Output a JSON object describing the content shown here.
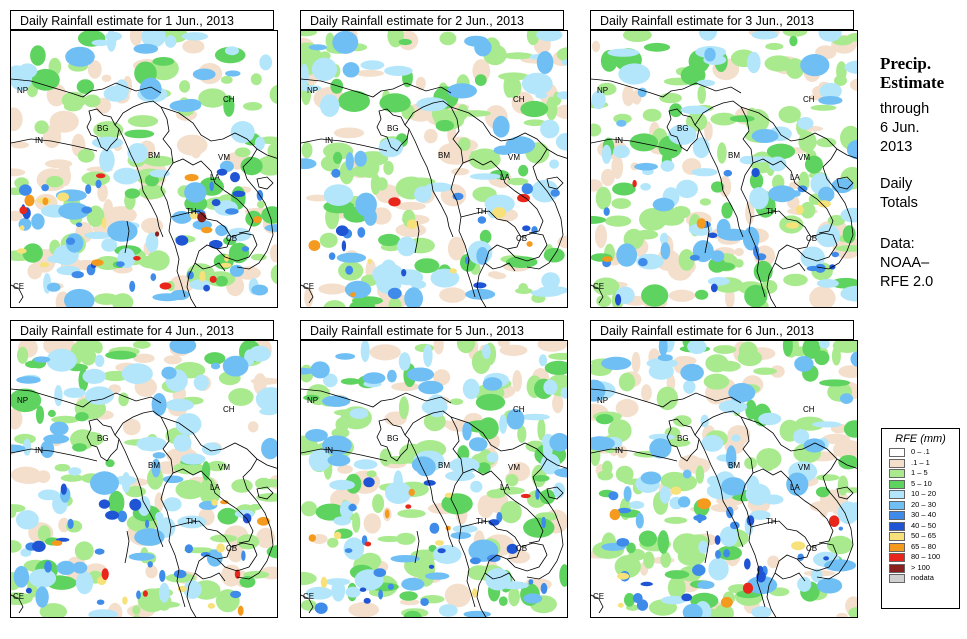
{
  "panels": [
    {
      "title": "Daily Rainfall estimate for  1 Jun., 2013"
    },
    {
      "title": "Daily Rainfall estimate for  2 Jun., 2013"
    },
    {
      "title": "Daily Rainfall estimate for  3 Jun., 2013"
    },
    {
      "title": "Daily Rainfall estimate for  4 Jun., 2013"
    },
    {
      "title": "Daily Rainfall estimate for  5 Jun., 2013"
    },
    {
      "title": "Daily Rainfall estimate for  6 Jun., 2013"
    }
  ],
  "map_labels": {
    "NP": "NP",
    "CH": "CH",
    "IN": "IN",
    "BG": "BG",
    "BM": "BM",
    "VM": "VM",
    "LA": "LA",
    "TH": "TH",
    "CB": "CB",
    "CE": "CE"
  },
  "sidebar": {
    "title_line1": "Precip.",
    "title_line2": "Estimate",
    "through": "through",
    "date_line1": "6 Jun.",
    "date_line2": "2013",
    "daily1": "Daily",
    "daily2": "Totals",
    "data1": "Data:",
    "data2": "NOAA–",
    "data3": "RFE 2.0"
  },
  "legend": {
    "title": "RFE (mm)",
    "items": [
      {
        "label": "0 – .1",
        "color": "#ffffff"
      },
      {
        "label": ".1 – 1",
        "color": "#f3dfcb"
      },
      {
        "label": "1 – 5",
        "color": "#a9ea8e"
      },
      {
        "label": "5 – 10",
        "color": "#5fd35f"
      },
      {
        "label": "10 – 20",
        "color": "#b3e6fb"
      },
      {
        "label": "20 – 30",
        "color": "#6fbff5"
      },
      {
        "label": "30 – 40",
        "color": "#3e8bea"
      },
      {
        "label": "40 – 50",
        "color": "#1f55d4"
      },
      {
        "label": "50 – 65",
        "color": "#f7e17a"
      },
      {
        "label": "65 – 80",
        "color": "#f39a1f"
      },
      {
        "label": "80 – 100",
        "color": "#e8261c"
      },
      {
        "label": "> 100",
        "color": "#8a2020"
      },
      {
        "label": "nodata",
        "color": "#d0d0d0"
      }
    ]
  },
  "rain_patterns": [
    [
      {
        "c": "#f3dfcb",
        "n": 55
      },
      {
        "c": "#a9ea8e",
        "n": 60
      },
      {
        "c": "#5fd35f",
        "n": 25
      },
      {
        "c": "#b3e6fb",
        "n": 35
      },
      {
        "c": "#6fbff5",
        "n": 25
      },
      {
        "c": "#3e8bea",
        "n": 18
      },
      {
        "c": "#1f55d4",
        "n": 10
      },
      {
        "c": "#f7e17a",
        "n": 10
      },
      {
        "c": "#f39a1f",
        "n": 6
      },
      {
        "c": "#e8261c",
        "n": 5
      },
      {
        "c": "#8a2020",
        "n": 2
      }
    ],
    [
      {
        "c": "#f3dfcb",
        "n": 60
      },
      {
        "c": "#a9ea8e",
        "n": 70
      },
      {
        "c": "#5fd35f",
        "n": 25
      },
      {
        "c": "#b3e6fb",
        "n": 35
      },
      {
        "c": "#6fbff5",
        "n": 20
      },
      {
        "c": "#3e8bea",
        "n": 12
      },
      {
        "c": "#1f55d4",
        "n": 5
      },
      {
        "c": "#f7e17a",
        "n": 4
      },
      {
        "c": "#f39a1f",
        "n": 3
      },
      {
        "c": "#e8261c",
        "n": 2
      }
    ],
    [
      {
        "c": "#f3dfcb",
        "n": 60
      },
      {
        "c": "#a9ea8e",
        "n": 75
      },
      {
        "c": "#5fd35f",
        "n": 30
      },
      {
        "c": "#b3e6fb",
        "n": 40
      },
      {
        "c": "#6fbff5",
        "n": 20
      },
      {
        "c": "#3e8bea",
        "n": 12
      },
      {
        "c": "#1f55d4",
        "n": 5
      },
      {
        "c": "#f7e17a",
        "n": 3
      },
      {
        "c": "#f39a1f",
        "n": 2
      },
      {
        "c": "#e8261c",
        "n": 1
      }
    ],
    [
      {
        "c": "#f3dfcb",
        "n": 55
      },
      {
        "c": "#a9ea8e",
        "n": 70
      },
      {
        "c": "#5fd35f",
        "n": 25
      },
      {
        "c": "#b3e6fb",
        "n": 40
      },
      {
        "c": "#6fbff5",
        "n": 25
      },
      {
        "c": "#3e8bea",
        "n": 15
      },
      {
        "c": "#1f55d4",
        "n": 8
      },
      {
        "c": "#f7e17a",
        "n": 6
      },
      {
        "c": "#f39a1f",
        "n": 4
      },
      {
        "c": "#e8261c",
        "n": 3
      }
    ],
    [
      {
        "c": "#f3dfcb",
        "n": 50
      },
      {
        "c": "#a9ea8e",
        "n": 75
      },
      {
        "c": "#5fd35f",
        "n": 30
      },
      {
        "c": "#b3e6fb",
        "n": 45
      },
      {
        "c": "#6fbff5",
        "n": 28
      },
      {
        "c": "#3e8bea",
        "n": 16
      },
      {
        "c": "#1f55d4",
        "n": 8
      },
      {
        "c": "#f7e17a",
        "n": 5
      },
      {
        "c": "#f39a1f",
        "n": 4
      },
      {
        "c": "#e8261c",
        "n": 3
      }
    ],
    [
      {
        "c": "#f3dfcb",
        "n": 55
      },
      {
        "c": "#a9ea8e",
        "n": 75
      },
      {
        "c": "#5fd35f",
        "n": 28
      },
      {
        "c": "#b3e6fb",
        "n": 42
      },
      {
        "c": "#6fbff5",
        "n": 26
      },
      {
        "c": "#3e8bea",
        "n": 16
      },
      {
        "c": "#1f55d4",
        "n": 8
      },
      {
        "c": "#f7e17a",
        "n": 4
      },
      {
        "c": "#f39a1f",
        "n": 3
      },
      {
        "c": "#e8261c",
        "n": 2
      }
    ]
  ]
}
